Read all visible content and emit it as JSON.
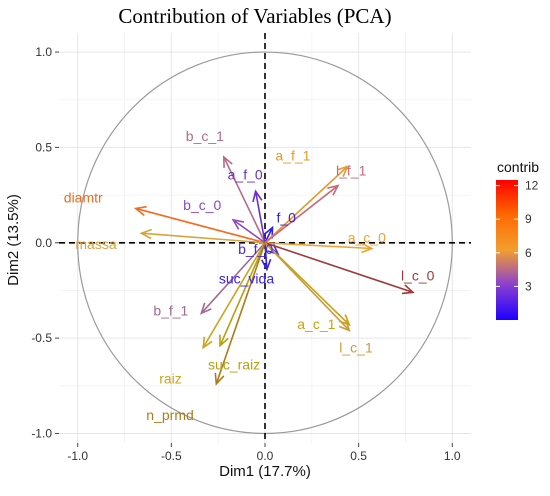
{
  "chart_data": {
    "type": "scatter",
    "title": "Contribution of Variables (PCA)",
    "xlabel": "Dim1 (17.7%)",
    "ylabel": "Dim2 (13.5%)",
    "xlim": [
      -1.1,
      1.1
    ],
    "ylim": [
      -1.05,
      1.1
    ],
    "x_ticks": [
      -1.0,
      -0.5,
      0.0,
      0.5,
      1.0
    ],
    "y_ticks": [
      -1.0,
      -0.5,
      0.0,
      0.5,
      1.0
    ],
    "x_tick_labels": [
      "-1.0",
      "-0.5",
      "0.0",
      "0.5",
      "1.0"
    ],
    "y_tick_labels": [
      "-1.0",
      "-0.5",
      "0.0",
      "0.5",
      "1.0"
    ],
    "grid": true,
    "unit_circle": true,
    "legend": {
      "title": "contrib",
      "placement": "right",
      "min": 0,
      "max": 12.5,
      "ticks": [
        3,
        6,
        9,
        12
      ],
      "tick_labels": [
        "3",
        "6",
        "9",
        "12"
      ],
      "colors": [
        "#1e00ff",
        "#8a3fd0",
        "#f29e2e",
        "#ff6a00",
        "#ff0000"
      ]
    },
    "variables": [
      {
        "name": "diamtr",
        "x": -0.69,
        "y": 0.18,
        "color": "#f36b1f"
      },
      {
        "name": "massa",
        "x": -0.66,
        "y": 0.05,
        "color": "#d8a33a"
      },
      {
        "name": "b_c_1",
        "x": -0.22,
        "y": 0.45,
        "color": "#b56a88"
      },
      {
        "name": "a_f_0",
        "x": -0.05,
        "y": 0.27,
        "color": "#6a2fd0"
      },
      {
        "name": "b_c_0",
        "x": -0.17,
        "y": 0.12,
        "color": "#8c4cc0"
      },
      {
        "name": "f_0",
        "x": 0.04,
        "y": 0.08,
        "color": "#3320e0"
      },
      {
        "name": "a_f_1",
        "x": 0.44,
        "y": 0.4,
        "color": "#e69a2c"
      },
      {
        "name": "l_f_1",
        "x": 0.39,
        "y": 0.3,
        "color": "#c76a7a"
      },
      {
        "name": "a_c_0",
        "x": 0.57,
        "y": -0.03,
        "color": "#f0a32e"
      },
      {
        "name": "b_f_0",
        "x": 0.07,
        "y": -0.06,
        "color": "#4a2ad6"
      },
      {
        "name": "l_c_0",
        "x": 0.79,
        "y": -0.26,
        "color": "#9c3a3a"
      },
      {
        "name": "suc_vida",
        "x": 0.01,
        "y": -0.14,
        "color": "#3a22e0"
      },
      {
        "name": "a_c_1",
        "x": 0.45,
        "y": -0.43,
        "color": "#c9a20f"
      },
      {
        "name": "l_c_1",
        "x": 0.45,
        "y": -0.46,
        "color": "#cc9b33"
      },
      {
        "name": "b_f_1",
        "x": -0.34,
        "y": -0.37,
        "color": "#a26b94"
      },
      {
        "name": "raiz",
        "x": -0.33,
        "y": -0.55,
        "color": "#c9a520"
      },
      {
        "name": "suc_raiz",
        "x": -0.24,
        "y": -0.54,
        "color": "#b8a010"
      },
      {
        "name": "n_prmd",
        "x": -0.26,
        "y": -0.74,
        "color": "#b07a18"
      }
    ]
  }
}
